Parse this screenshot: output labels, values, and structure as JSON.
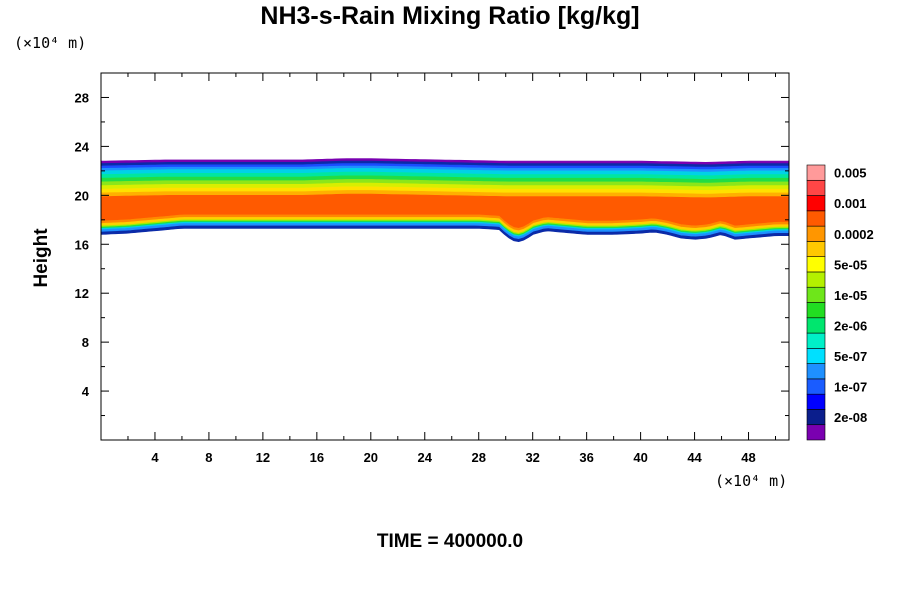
{
  "chart_data": {
    "type": "contour",
    "title": "NH3-s-Rain Mixing Ratio [kg/kg]",
    "ylabel": "Height",
    "x_unit": "(×10⁴ m)",
    "y_unit": "(×10⁴ m)",
    "footer": "TIME = 400000.0",
    "xlim": [
      0,
      51
    ],
    "ylim": [
      0,
      30
    ],
    "x_ticks": [
      4,
      8,
      12,
      16,
      20,
      24,
      28,
      32,
      36,
      40,
      44,
      48
    ],
    "y_ticks": [
      4,
      8,
      12,
      16,
      20,
      24,
      28
    ],
    "cloud_top": [
      [
        0,
        22.8
      ],
      [
        5,
        22.9
      ],
      [
        10,
        22.9
      ],
      [
        15,
        22.9
      ],
      [
        18,
        23.0
      ],
      [
        20,
        23.0
      ],
      [
        25,
        22.9
      ],
      [
        30,
        22.8
      ],
      [
        35,
        22.8
      ],
      [
        40,
        22.8
      ],
      [
        45,
        22.7
      ],
      [
        48,
        22.8
      ],
      [
        51,
        22.8
      ]
    ],
    "cloud_base": [
      [
        0,
        16.8
      ],
      [
        2,
        16.9
      ],
      [
        4,
        17.1
      ],
      [
        6,
        17.3
      ],
      [
        8,
        17.3
      ],
      [
        12,
        17.3
      ],
      [
        16,
        17.3
      ],
      [
        20,
        17.3
      ],
      [
        24,
        17.3
      ],
      [
        28,
        17.3
      ],
      [
        29.5,
        17.2
      ],
      [
        30,
        16.7
      ],
      [
        30.5,
        16.3
      ],
      [
        31,
        16.2
      ],
      [
        31.5,
        16.4
      ],
      [
        32,
        16.8
      ],
      [
        33,
        17.1
      ],
      [
        34,
        17.0
      ],
      [
        35,
        16.9
      ],
      [
        36,
        16.8
      ],
      [
        38,
        16.8
      ],
      [
        40,
        16.9
      ],
      [
        41,
        17.0
      ],
      [
        42,
        16.8
      ],
      [
        43,
        16.5
      ],
      [
        44,
        16.4
      ],
      [
        45,
        16.5
      ],
      [
        46,
        16.8
      ],
      [
        47,
        16.4
      ],
      [
        48,
        16.5
      ],
      [
        49,
        16.6
      ],
      [
        50,
        16.7
      ],
      [
        51,
        16.7
      ]
    ],
    "bands": [
      {
        "from": 22.8,
        "to": 23.0,
        "color": "#7a00b0"
      },
      {
        "from": 22.6,
        "to": 22.8,
        "color": "#0b2aa8"
      },
      {
        "from": 22.4,
        "to": 22.6,
        "color": "#1a4cff"
      },
      {
        "from": 22.2,
        "to": 22.4,
        "color": "#1e90ff"
      },
      {
        "from": 21.9,
        "to": 22.2,
        "color": "#00d2e6"
      },
      {
        "from": 21.6,
        "to": 21.9,
        "color": "#00e6a0"
      },
      {
        "from": 21.3,
        "to": 21.6,
        "color": "#22dd44"
      },
      {
        "from": 21.0,
        "to": 21.3,
        "color": "#8ce61a"
      },
      {
        "from": 20.7,
        "to": 21.0,
        "color": "#d8ef00"
      },
      {
        "from": 20.4,
        "to": 20.7,
        "color": "#ffe000"
      },
      {
        "from": 20.1,
        "to": 20.4,
        "color": "#ffb000"
      },
      {
        "from": 18.0,
        "to": 20.1,
        "color": "#ff5a00"
      },
      {
        "from": 17.8,
        "to": 18.0,
        "color": "#ff8a00"
      },
      {
        "from": 17.6,
        "to": 17.8,
        "color": "#ffd000"
      },
      {
        "from": 17.5,
        "to": 17.6,
        "color": "#a0f000"
      },
      {
        "from": 17.4,
        "to": 17.5,
        "color": "#22dd44"
      },
      {
        "from": 17.3,
        "to": 17.4,
        "color": "#00d2e6"
      },
      {
        "from": 17.1,
        "to": 17.3,
        "color": "#1e90ff"
      },
      {
        "from": 16.9,
        "to": 17.1,
        "color": "#0b2aa8"
      }
    ],
    "colorbar": {
      "colors": [
        "#7a00b0",
        "#0b1e8c",
        "#0000ff",
        "#1a5cff",
        "#1e90ff",
        "#00e0ff",
        "#00f0c8",
        "#00e66e",
        "#22dd22",
        "#6ee61a",
        "#b4f000",
        "#ffff00",
        "#ffc800",
        "#ff9600",
        "#ff5a00",
        "#ff0000",
        "#ff4646",
        "#ff9a9a"
      ],
      "labels": [
        "2e-08",
        "1e-07",
        "5e-07",
        "2e-06",
        "1e-05",
        "5e-05",
        "0.0002",
        "0.001",
        "0.005"
      ]
    }
  }
}
